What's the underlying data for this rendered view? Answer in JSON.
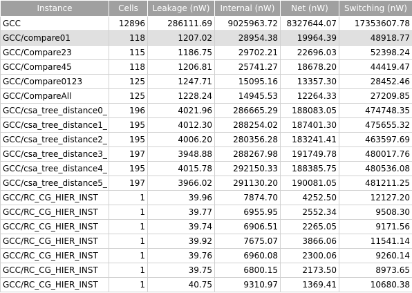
{
  "table": {
    "columns": [
      "Instance",
      "Cells",
      "Leakage (nW)",
      "Internal (nW)",
      "Net (nW)",
      "Switching (nW)"
    ],
    "rows": [
      [
        "GCC",
        "12896",
        "286111.69",
        "9025963.72",
        "8327644.07",
        "17353607.78"
      ],
      [
        "GCC/compare01",
        "118",
        "1207.02",
        "28954.38",
        "19964.39",
        "48918.77"
      ],
      [
        "GCC/Compare23",
        "115",
        "1186.75",
        "29702.21",
        "22696.03",
        "52398.24"
      ],
      [
        "GCC/Compare45",
        "118",
        "1206.81",
        "25741.27",
        "18678.20",
        "44419.47"
      ],
      [
        "GCC/Compare0123",
        "125",
        "1247.71",
        "15095.16",
        "13357.30",
        "28452.46"
      ],
      [
        "GCC/CompareAll",
        "125",
        "1228.24",
        "14945.53",
        "12264.33",
        "27209.85"
      ],
      [
        "GCC/csa_tree_distance0_",
        "196",
        "4021.96",
        "286665.29",
        "188083.05",
        "474748.35"
      ],
      [
        "GCC/csa_tree_distance1_",
        "195",
        "4012.30",
        "288254.02",
        "187401.30",
        "475655.32"
      ],
      [
        "GCC/csa_tree_distance2_",
        "195",
        "4006.20",
        "280356.28",
        "183241.41",
        "463597.69"
      ],
      [
        "GCC/csa_tree_distance3_",
        "197",
        "3948.88",
        "288267.98",
        "191749.78",
        "480017.76"
      ],
      [
        "GCC/csa_tree_distance4_",
        "195",
        "4015.78",
        "292150.33",
        "188385.75",
        "480536.08"
      ],
      [
        "GCC/csa_tree_distance5_",
        "197",
        "3966.02",
        "291130.20",
        "190081.05",
        "481211.25"
      ],
      [
        "GCC/RC_CG_HIER_INST",
        "1",
        "39.96",
        "7874.70",
        "4252.50",
        "12127.20"
      ],
      [
        "GCC/RC_CG_HIER_INST",
        "1",
        "39.77",
        "6955.95",
        "2552.34",
        "9508.30"
      ],
      [
        "GCC/RC_CG_HIER_INST",
        "1",
        "39.74",
        "6906.51",
        "2265.05",
        "9171.56"
      ],
      [
        "GCC/RC_CG_HIER_INST",
        "1",
        "39.92",
        "7675.07",
        "3866.06",
        "11541.14"
      ],
      [
        "GCC/RC_CG_HIER_INST",
        "1",
        "39.76",
        "6960.08",
        "2300.06",
        "9260.14"
      ],
      [
        "GCC/RC_CG_HIER_INST",
        "1",
        "39.75",
        "6800.15",
        "2173.50",
        "8973.65"
      ],
      [
        "GCC/RC_CG_HIER_INST",
        "1",
        "40.75",
        "9310.97",
        "1369.41",
        "10680.38"
      ]
    ]
  }
}
